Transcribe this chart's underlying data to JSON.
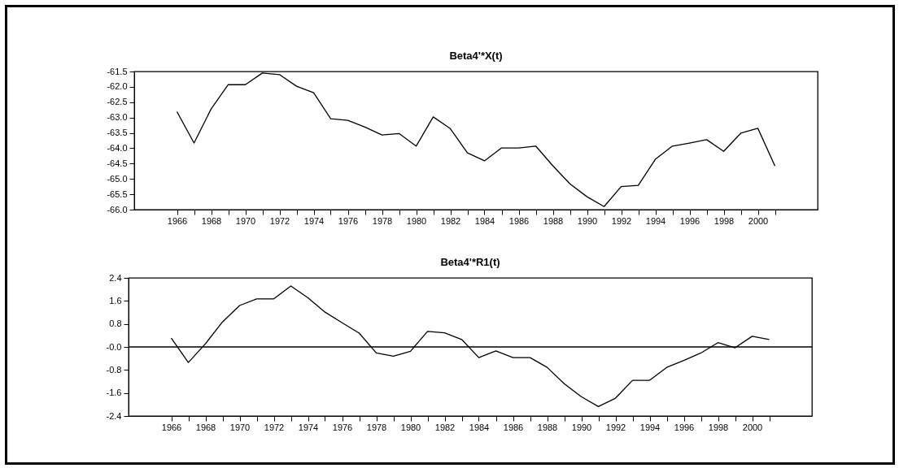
{
  "chart_data": [
    {
      "type": "line",
      "title": "Beta4'*X(t)",
      "x": [
        1966,
        1967,
        1968,
        1969,
        1970,
        1971,
        1972,
        1973,
        1974,
        1975,
        1976,
        1977,
        1978,
        1979,
        1980,
        1981,
        1982,
        1983,
        1984,
        1985,
        1986,
        1987,
        1988,
        1989,
        1990,
        1991,
        1992,
        1993,
        1994,
        1995,
        1996,
        1997,
        1998,
        1999,
        2000,
        2001
      ],
      "series": [
        {
          "color": "#000000",
          "values": [
            -62.81,
            -63.83,
            -62.72,
            -61.93,
            -61.93,
            -61.55,
            -61.6,
            -61.98,
            -62.19,
            -63.04,
            -63.09,
            -63.31,
            -63.57,
            -63.52,
            -63.93,
            -62.98,
            -63.36,
            -64.15,
            -64.41,
            -63.99,
            -63.99,
            -63.93,
            -64.57,
            -65.16,
            -65.58,
            -65.9,
            -65.25,
            -65.21,
            -64.36,
            -63.93,
            -63.83,
            -63.72,
            -64.1,
            -63.51,
            -63.35,
            -64.58
          ]
        }
      ],
      "xlim": [
        1963.5,
        2003.5
      ],
      "xticks": [
        1966,
        {
          "value": 1967,
          "label": null
        },
        1968,
        {
          "value": 1969,
          "label": null
        },
        1970,
        {
          "value": 1971,
          "label": null
        },
        1972,
        {
          "value": 1973,
          "label": null
        },
        1974,
        {
          "value": 1975,
          "label": null
        },
        1976,
        {
          "value": 1977,
          "label": null
        },
        1978,
        {
          "value": 1979,
          "label": null
        },
        1980,
        {
          "value": 1981,
          "label": null
        },
        1982,
        {
          "value": 1983,
          "label": null
        },
        1984,
        {
          "value": 1985,
          "label": null
        },
        1986,
        {
          "value": 1987,
          "label": null
        },
        1988,
        {
          "value": 1989,
          "label": null
        },
        1990,
        {
          "value": 1991,
          "label": null
        },
        1992,
        {
          "value": 1993,
          "label": null
        },
        1994,
        {
          "value": 1995,
          "label": null
        },
        1996,
        {
          "value": 1997,
          "label": null
        },
        1998,
        {
          "value": 1999,
          "label": null
        },
        2000,
        {
          "value": 2001,
          "label": null
        }
      ],
      "ylim": [
        -66,
        -61.5
      ],
      "yticks": [
        {
          "value": -66,
          "label": "-66.0"
        },
        -65.5,
        {
          "value": -65,
          "label": "-65.0"
        },
        -64.5,
        {
          "value": -64,
          "label": "-64.0"
        },
        -63.5,
        {
          "value": -63,
          "label": "-63.0"
        },
        -62.5,
        {
          "value": -62,
          "label": "-62.0"
        },
        -61.5
      ]
    },
    {
      "type": "line",
      "title": "Beta4'*R1(t)",
      "x": [
        1966,
        1967,
        1968,
        1969,
        1970,
        1971,
        1972,
        1973,
        1974,
        1975,
        1976,
        1977,
        1978,
        1979,
        1980,
        1981,
        1982,
        1983,
        1984,
        1985,
        1986,
        1987,
        1988,
        1989,
        1990,
        1991,
        1992,
        1993,
        1994,
        1995,
        1996,
        1997,
        1998,
        1999,
        2000,
        2001
      ],
      "series": [
        {
          "color": "#000000",
          "values": [
            0.31,
            -0.54,
            0.11,
            0.87,
            1.44,
            1.67,
            1.67,
            2.12,
            1.71,
            1.21,
            0.84,
            0.48,
            -0.21,
            -0.32,
            -0.15,
            0.54,
            0.49,
            0.26,
            -0.37,
            -0.14,
            -0.37,
            -0.37,
            -0.71,
            -1.28,
            -1.73,
            -2.07,
            -1.78,
            -1.16,
            -1.16,
            -0.71,
            -0.47,
            -0.21,
            0.15,
            -0.03,
            0.37,
            0.26
          ]
        }
      ],
      "xlim": [
        1963.5,
        2003.5
      ],
      "xticks": [
        1966,
        {
          "value": 1967,
          "label": null
        },
        1968,
        {
          "value": 1969,
          "label": null
        },
        1970,
        {
          "value": 1971,
          "label": null
        },
        1972,
        {
          "value": 1973,
          "label": null
        },
        1974,
        {
          "value": 1975,
          "label": null
        },
        1976,
        {
          "value": 1977,
          "label": null
        },
        1978,
        {
          "value": 1979,
          "label": null
        },
        1980,
        {
          "value": 1981,
          "label": null
        },
        1982,
        {
          "value": 1983,
          "label": null
        },
        1984,
        {
          "value": 1985,
          "label": null
        },
        1986,
        {
          "value": 1987,
          "label": null
        },
        1988,
        {
          "value": 1989,
          "label": null
        },
        1990,
        {
          "value": 1991,
          "label": null
        },
        1992,
        {
          "value": 1993,
          "label": null
        },
        1994,
        {
          "value": 1995,
          "label": null
        },
        1996,
        {
          "value": 1997,
          "label": null
        },
        1998,
        {
          "value": 1999,
          "label": null
        },
        2000,
        {
          "value": 2001,
          "label": null
        }
      ],
      "ylim": [
        -2.4,
        2.4
      ],
      "yticks": [
        -2.4,
        -1.6,
        -0.8,
        {
          "value": 0,
          "label": "-0.0"
        },
        0.8,
        1.6,
        2.4
      ],
      "ref_lines": [
        {
          "axis": "y",
          "value": 0,
          "label": null
        }
      ]
    }
  ]
}
